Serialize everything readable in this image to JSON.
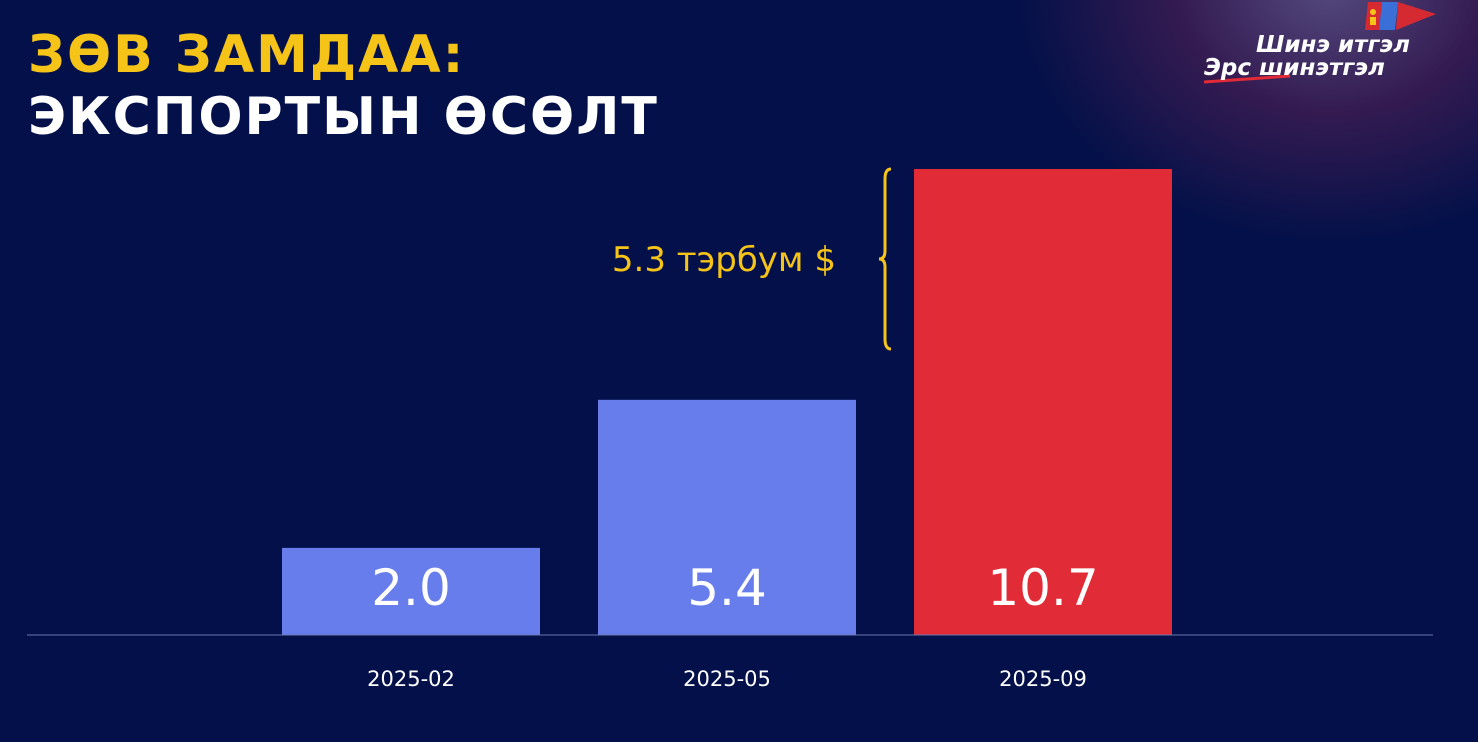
{
  "title": {
    "line1": "ЗӨВ ЗАМДАА:",
    "line2": "ЭКСПОРТЫН ӨСӨЛТ"
  },
  "logo": {
    "line1": "Шинэ итгэл",
    "line2": "Эрс шинэтгэл"
  },
  "colors": {
    "background": "#031049",
    "bar_blue": "#677deb",
    "bar_red": "#e12b36",
    "accent_yellow": "#f6c418"
  },
  "chart_data": {
    "type": "bar",
    "categories": [
      "2025-02",
      "2025-05",
      "2025-09"
    ],
    "values": [
      2.0,
      5.4,
      10.7
    ],
    "value_labels": [
      "2.0",
      "5.4",
      "10.7"
    ],
    "bar_colors": [
      "#677deb",
      "#677deb",
      "#e12b36"
    ],
    "ylim": [
      0,
      10.7
    ],
    "grid": false,
    "annotation": {
      "text": "5.3 тэрбум $",
      "from": 5.4,
      "to": 10.7
    }
  }
}
